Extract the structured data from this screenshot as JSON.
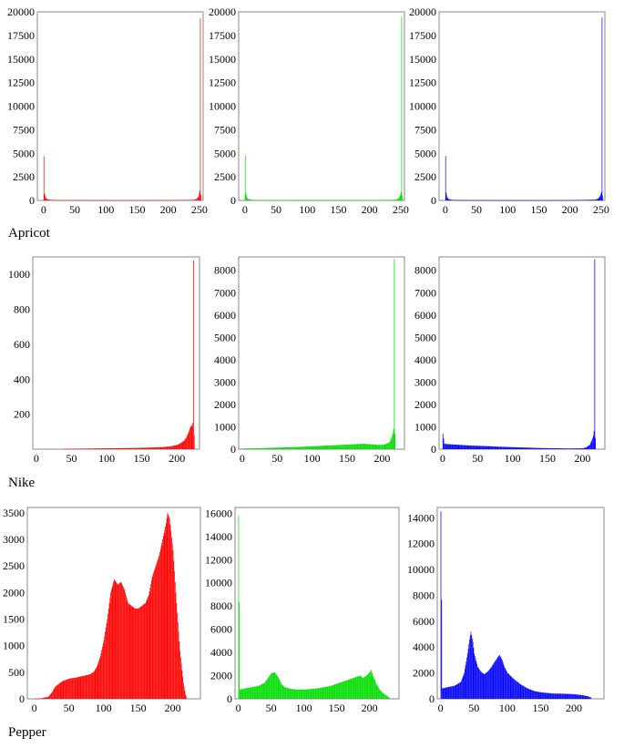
{
  "rows": [
    {
      "label": "Apricot"
    },
    {
      "label": "Nike"
    },
    {
      "label": "Pepper"
    }
  ],
  "chart_data": [
    {
      "type": "bar",
      "row": "Apricot",
      "channel": "red",
      "color": "#ff0000",
      "xlim": [
        -10,
        256
      ],
      "ylim": [
        0,
        20000
      ],
      "xticks": [
        0,
        50,
        100,
        150,
        200,
        250
      ],
      "yticks": [
        0,
        2500,
        5000,
        7500,
        10000,
        12500,
        15000,
        17500,
        20000
      ],
      "points": [
        [
          0,
          4700
        ],
        [
          1,
          700
        ],
        [
          2,
          500
        ],
        [
          3,
          300
        ],
        [
          4,
          200
        ],
        [
          6,
          120
        ],
        [
          10,
          60
        ],
        [
          30,
          30
        ],
        [
          60,
          25
        ],
        [
          100,
          20
        ],
        [
          150,
          20
        ],
        [
          200,
          30
        ],
        [
          240,
          60
        ],
        [
          245,
          150
        ],
        [
          248,
          400
        ],
        [
          250,
          1000
        ],
        [
          251,
          19300
        ],
        [
          252,
          600
        ]
      ]
    },
    {
      "type": "bar",
      "row": "Apricot",
      "channel": "green",
      "color": "#00dd00",
      "xlim": [
        -10,
        256
      ],
      "ylim": [
        0,
        20000
      ],
      "xticks": [
        0,
        50,
        100,
        150,
        200,
        250
      ],
      "yticks": [
        0,
        2500,
        5000,
        7500,
        10000,
        12500,
        15000,
        17500,
        20000
      ],
      "points": [
        [
          0,
          4800
        ],
        [
          1,
          800
        ],
        [
          2,
          500
        ],
        [
          3,
          300
        ],
        [
          5,
          150
        ],
        [
          10,
          60
        ],
        [
          30,
          30
        ],
        [
          60,
          25
        ],
        [
          100,
          20
        ],
        [
          150,
          20
        ],
        [
          200,
          30
        ],
        [
          240,
          60
        ],
        [
          245,
          150
        ],
        [
          248,
          400
        ],
        [
          250,
          900
        ],
        [
          251,
          19500
        ],
        [
          252,
          500
        ]
      ]
    },
    {
      "type": "bar",
      "row": "Apricot",
      "channel": "blue",
      "color": "#0000ff",
      "xlim": [
        -10,
        256
      ],
      "ylim": [
        0,
        20000
      ],
      "xticks": [
        0,
        50,
        100,
        150,
        200,
        250
      ],
      "yticks": [
        0,
        2500,
        5000,
        7500,
        10000,
        12500,
        15000,
        17500,
        20000
      ],
      "points": [
        [
          0,
          4700
        ],
        [
          1,
          800
        ],
        [
          2,
          500
        ],
        [
          3,
          300
        ],
        [
          5,
          150
        ],
        [
          10,
          60
        ],
        [
          30,
          30
        ],
        [
          60,
          25
        ],
        [
          100,
          20
        ],
        [
          150,
          20
        ],
        [
          200,
          30
        ],
        [
          240,
          80
        ],
        [
          245,
          200
        ],
        [
          248,
          500
        ],
        [
          250,
          900
        ],
        [
          251,
          19400
        ],
        [
          252,
          500
        ]
      ]
    },
    {
      "type": "bar",
      "row": "Nike",
      "channel": "red",
      "color": "#ff0000",
      "xlim": [
        -5,
        232
      ],
      "ylim": [
        0,
        1100
      ],
      "xticks": [
        0,
        50,
        100,
        150,
        200
      ],
      "yticks": [
        200,
        400,
        600,
        800,
        1000
      ],
      "points": [
        [
          40,
          2
        ],
        [
          60,
          3
        ],
        [
          80,
          4
        ],
        [
          100,
          5
        ],
        [
          120,
          6
        ],
        [
          140,
          7
        ],
        [
          160,
          9
        ],
        [
          180,
          12
        ],
        [
          190,
          16
        ],
        [
          200,
          25
        ],
        [
          205,
          35
        ],
        [
          210,
          50
        ],
        [
          213,
          70
        ],
        [
          216,
          95
        ],
        [
          218,
          120
        ],
        [
          220,
          140
        ],
        [
          221,
          130
        ],
        [
          222,
          150
        ],
        [
          223,
          1080
        ],
        [
          224,
          80
        ]
      ]
    },
    {
      "type": "bar",
      "row": "Nike",
      "channel": "green",
      "color": "#00dd00",
      "xlim": [
        -5,
        232
      ],
      "ylim": [
        0,
        8600
      ],
      "xticks": [
        0,
        50,
        100,
        150,
        200
      ],
      "yticks": [
        0,
        1000,
        2000,
        3000,
        4000,
        5000,
        6000,
        7000,
        8000
      ],
      "points": [
        [
          0,
          30
        ],
        [
          20,
          40
        ],
        [
          40,
          60
        ],
        [
          60,
          80
        ],
        [
          80,
          100
        ],
        [
          100,
          130
        ],
        [
          120,
          160
        ],
        [
          140,
          190
        ],
        [
          160,
          220
        ],
        [
          170,
          240
        ],
        [
          180,
          230
        ],
        [
          190,
          200
        ],
        [
          200,
          190
        ],
        [
          205,
          230
        ],
        [
          210,
          300
        ],
        [
          213,
          500
        ],
        [
          215,
          700
        ],
        [
          216,
          900
        ],
        [
          217,
          8500
        ],
        [
          218,
          700
        ]
      ]
    },
    {
      "type": "bar",
      "row": "Nike",
      "channel": "blue",
      "color": "#0000ff",
      "xlim": [
        -5,
        232
      ],
      "ylim": [
        0,
        8600
      ],
      "xticks": [
        0,
        50,
        100,
        150,
        200
      ],
      "yticks": [
        0,
        1000,
        2000,
        3000,
        4000,
        5000,
        6000,
        7000,
        8000
      ],
      "points": [
        [
          0,
          700
        ],
        [
          2,
          250
        ],
        [
          5,
          230
        ],
        [
          10,
          220
        ],
        [
          20,
          200
        ],
        [
          40,
          160
        ],
        [
          60,
          140
        ],
        [
          80,
          110
        ],
        [
          100,
          90
        ],
        [
          120,
          70
        ],
        [
          140,
          50
        ],
        [
          160,
          40
        ],
        [
          180,
          30
        ],
        [
          200,
          40
        ],
        [
          205,
          80
        ],
        [
          210,
          200
        ],
        [
          213,
          400
        ],
        [
          215,
          600
        ],
        [
          216,
          800
        ],
        [
          217,
          8500
        ],
        [
          218,
          500
        ]
      ]
    },
    {
      "type": "bar",
      "row": "Pepper",
      "channel": "red",
      "color": "#ff0000",
      "xlim": [
        -10,
        240
      ],
      "ylim": [
        0,
        3600
      ],
      "xticks": [
        0,
        50,
        100,
        150,
        200
      ],
      "yticks": [
        0,
        500,
        1000,
        1500,
        2000,
        2500,
        3000,
        3500
      ],
      "points": [
        [
          0,
          0
        ],
        [
          10,
          10
        ],
        [
          20,
          40
        ],
        [
          25,
          120
        ],
        [
          30,
          230
        ],
        [
          35,
          280
        ],
        [
          40,
          330
        ],
        [
          50,
          380
        ],
        [
          60,
          400
        ],
        [
          70,
          430
        ],
        [
          80,
          460
        ],
        [
          85,
          500
        ],
        [
          90,
          600
        ],
        [
          95,
          800
        ],
        [
          100,
          1100
        ],
        [
          105,
          1500
        ],
        [
          110,
          2000
        ],
        [
          115,
          2250
        ],
        [
          120,
          2150
        ],
        [
          125,
          2200
        ],
        [
          130,
          2050
        ],
        [
          135,
          1800
        ],
        [
          140,
          1750
        ],
        [
          145,
          1700
        ],
        [
          150,
          1700
        ],
        [
          155,
          1750
        ],
        [
          160,
          1800
        ],
        [
          165,
          1950
        ],
        [
          170,
          2300
        ],
        [
          175,
          2500
        ],
        [
          180,
          2700
        ],
        [
          185,
          3000
        ],
        [
          190,
          3300
        ],
        [
          192,
          3500
        ],
        [
          195,
          3400
        ],
        [
          200,
          2800
        ],
        [
          205,
          1800
        ],
        [
          210,
          900
        ],
        [
          215,
          300
        ],
        [
          218,
          80
        ],
        [
          220,
          10
        ]
      ]
    },
    {
      "type": "bar",
      "row": "Pepper",
      "channel": "green",
      "color": "#00dd00",
      "xlim": [
        -5,
        245
      ],
      "ylim": [
        0,
        16500
      ],
      "xticks": [
        0,
        50,
        100,
        150,
        200
      ],
      "yticks": [
        0,
        2000,
        4000,
        6000,
        8000,
        10000,
        12000,
        14000,
        16000
      ],
      "points": [
        [
          0,
          15800
        ],
        [
          2,
          800
        ],
        [
          10,
          900
        ],
        [
          20,
          1000
        ],
        [
          30,
          1100
        ],
        [
          40,
          1400
        ],
        [
          45,
          1800
        ],
        [
          50,
          2200
        ],
        [
          55,
          2300
        ],
        [
          60,
          1900
        ],
        [
          65,
          1300
        ],
        [
          70,
          1000
        ],
        [
          80,
          850
        ],
        [
          90,
          800
        ],
        [
          100,
          800
        ],
        [
          110,
          850
        ],
        [
          120,
          900
        ],
        [
          130,
          1000
        ],
        [
          140,
          1100
        ],
        [
          150,
          1300
        ],
        [
          160,
          1500
        ],
        [
          170,
          1700
        ],
        [
          180,
          1900
        ],
        [
          185,
          2000
        ],
        [
          190,
          1800
        ],
        [
          195,
          2000
        ],
        [
          200,
          2300
        ],
        [
          202,
          2500
        ],
        [
          205,
          2000
        ],
        [
          210,
          1300
        ],
        [
          215,
          800
        ],
        [
          220,
          500
        ],
        [
          225,
          300
        ],
        [
          230,
          100
        ]
      ]
    },
    {
      "type": "bar",
      "row": "Pepper",
      "channel": "blue",
      "color": "#0000ff",
      "xlim": [
        -5,
        245
      ],
      "ylim": [
        0,
        14800
      ],
      "xticks": [
        0,
        50,
        100,
        150,
        200
      ],
      "yticks": [
        0,
        2000,
        4000,
        6000,
        8000,
        10000,
        12000,
        14000
      ],
      "points": [
        [
          0,
          14500
        ],
        [
          2,
          800
        ],
        [
          10,
          900
        ],
        [
          20,
          1000
        ],
        [
          30,
          1300
        ],
        [
          35,
          2000
        ],
        [
          40,
          3500
        ],
        [
          43,
          4600
        ],
        [
          45,
          5200
        ],
        [
          48,
          4400
        ],
        [
          50,
          3500
        ],
        [
          55,
          2500
        ],
        [
          60,
          2100
        ],
        [
          65,
          1900
        ],
        [
          70,
          2100
        ],
        [
          75,
          2400
        ],
        [
          80,
          2800
        ],
        [
          85,
          3200
        ],
        [
          88,
          3400
        ],
        [
          92,
          3000
        ],
        [
          95,
          2500
        ],
        [
          100,
          2000
        ],
        [
          110,
          1500
        ],
        [
          120,
          1100
        ],
        [
          130,
          800
        ],
        [
          140,
          600
        ],
        [
          150,
          500
        ],
        [
          160,
          450
        ],
        [
          170,
          400
        ],
        [
          180,
          400
        ],
        [
          190,
          380
        ],
        [
          200,
          350
        ],
        [
          210,
          300
        ],
        [
          220,
          200
        ],
        [
          225,
          100
        ]
      ]
    }
  ]
}
